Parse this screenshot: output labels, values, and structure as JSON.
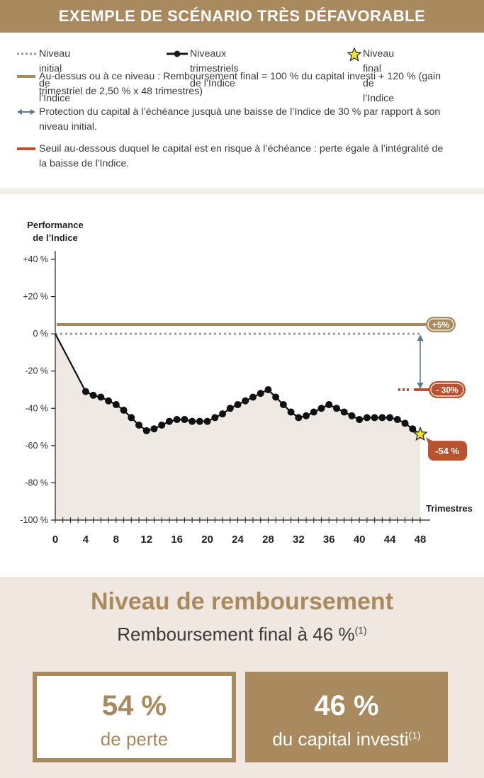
{
  "header": {
    "title": "EXEMPLE DE SCÉNARIO TRÈS DÉFAVORABLE"
  },
  "legend": {
    "initial_level": "Niveau initial de l’Indice",
    "quarterly_levels": "Niveaux trimestriels de l’Indice",
    "final_level": "Niveau final de l’Indice",
    "above_level_line1": "Au-dessus ou à ce niveau : Remboursement final = 100 %  du capital investi + 120 % (gain",
    "above_level_line2": "trimestriel de 2,50 % x 48 trimestres)",
    "protection_line1": "Protection du capital à l’échéance jusquà une baisse de l’Indice de 30 % par rapport à son",
    "protection_line2": "niveau initial.",
    "threshold_line1": "Seuil au-dessous duquel le capital est en risque à l’échéance : perte égale à l’intégralité de",
    "threshold_line2": "la baisse de l'Indice."
  },
  "colors": {
    "gold": "#a88a5e",
    "red": "#b9532f",
    "grey_dotted": "#9a9a9a",
    "arrow": "#5f7b8f",
    "area_fill": "#efe9e3",
    "bottom_bg": "#f0e8e0"
  },
  "chart_data": {
    "type": "line",
    "ylabel": "Performance de l’Indice",
    "xlabel": "Trimestres",
    "ylim": [
      -100,
      40
    ],
    "xlim": [
      0,
      48
    ],
    "y_ticks": [
      {
        "value": 40,
        "label": "+40 %"
      },
      {
        "value": 20,
        "label": "+20 %"
      },
      {
        "value": 0,
        "label": "0 %"
      },
      {
        "value": -20,
        "label": "-20 %"
      },
      {
        "value": -40,
        "label": "-40 %"
      },
      {
        "value": -60,
        "label": "-60 %"
      },
      {
        "value": -80,
        "label": "-80 %"
      },
      {
        "value": -100,
        "label": "-100 %"
      }
    ],
    "x_ticks": [
      {
        "value": 0,
        "label": "0"
      },
      {
        "value": 4,
        "label": "4"
      },
      {
        "value": 8,
        "label": "8"
      },
      {
        "value": 12,
        "label": "12"
      },
      {
        "value": 16,
        "label": "16"
      },
      {
        "value": 20,
        "label": "20"
      },
      {
        "value": 24,
        "label": "24"
      },
      {
        "value": 28,
        "label": "28"
      },
      {
        "value": 32,
        "label": "32"
      },
      {
        "value": 36,
        "label": "36"
      },
      {
        "value": 40,
        "label": "40"
      },
      {
        "value": 44,
        "label": "44"
      },
      {
        "value": 48,
        "label": "48"
      }
    ],
    "series": [
      {
        "x": [
          0,
          4,
          5,
          6,
          7,
          8,
          9,
          10,
          11,
          12,
          13,
          14,
          15,
          16,
          17,
          18,
          19,
          20,
          21,
          22,
          23,
          24,
          25,
          26,
          27,
          28,
          29,
          30,
          31,
          32,
          33,
          34,
          35,
          36,
          37,
          38,
          39,
          40,
          41,
          42,
          43,
          44,
          45,
          46,
          47,
          48
        ],
        "values": [
          0,
          -31,
          -33,
          -34,
          -36,
          -38,
          -41,
          -45,
          -49,
          -52,
          -51,
          -49,
          -47,
          -46,
          -46,
          -47,
          -47,
          -47,
          -45,
          -43,
          -40,
          -38,
          -36,
          -34,
          -32,
          -30,
          -34,
          -38,
          -42,
          -45,
          -44,
          -42,
          -40,
          -38,
          -40,
          -42,
          -44,
          -46,
          -45,
          -45,
          -45,
          -45,
          -46,
          -48,
          -51,
          -54
        ]
      }
    ],
    "reference_lines": [
      {
        "name": "initial",
        "y": 0
      },
      {
        "name": "reimbursement",
        "y": 5,
        "label": "+5%"
      },
      {
        "name": "protection",
        "y": -30,
        "label": "- 30%"
      }
    ],
    "final": {
      "x": 48,
      "y": -54,
      "label": "-54 %"
    }
  },
  "reimbursement": {
    "title": "Niveau de remboursement",
    "subtitle": "Remboursement final à 46 %",
    "subtitle_note": "(1)"
  },
  "boxes": {
    "loss_value": "54 %",
    "loss_label": "de perte",
    "capital_value": "46 %",
    "capital_label": "du capital investi",
    "capital_note": "(1)"
  }
}
